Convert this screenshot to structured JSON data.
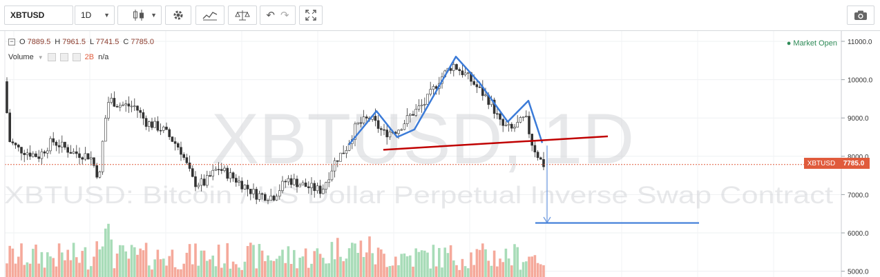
{
  "toolbar": {
    "symbol": "XBTUSD",
    "interval": "1D"
  },
  "legend": {
    "ohlc_open_label": "O",
    "ohlc_open": "7889.5",
    "ohlc_high_label": "H",
    "ohlc_high": "7961.5",
    "ohlc_low_label": "L",
    "ohlc_low": "7741.5",
    "ohlc_close_label": "C",
    "ohlc_close": "7785.0",
    "volume_label": "Volume",
    "volume_value": "2B",
    "volume_na": "n/a",
    "market_status": "Market Open"
  },
  "watermark": {
    "symbol": "XBTUSD, 1D",
    "description": "XBTUSD: Bitcoin / US Dollar Perpetual Inverse Swap Contract"
  },
  "price_tag": {
    "symbol": "XBTUSD",
    "price": "7785.0"
  },
  "colors": {
    "up": "#26a69a",
    "down": "#ef5350",
    "vol_up": "#a8dcb8",
    "vol_down": "#f5a99b",
    "pattern_line": "#3b7bd8",
    "neckline": "#c00000",
    "last_price": "#e05b3c"
  },
  "chart_data": {
    "type": "candlestick",
    "y_axis_ticks": [
      "11000.0",
      "10000.0",
      "9000.0",
      "8000.0",
      "7000.0",
      "6000.0",
      "5000.0"
    ],
    "y_axis_values": [
      11000,
      10000,
      9000,
      8000,
      7000,
      6000,
      5000
    ],
    "ylim": [
      4800,
      11200
    ],
    "last_price": 7785.0,
    "annotations": {
      "head_and_shoulders": [
        [
          505,
          8300
        ],
        [
          545,
          9180
        ],
        [
          575,
          8500
        ],
        [
          600,
          8700
        ],
        [
          660,
          10600
        ],
        [
          695,
          9900
        ],
        [
          735,
          8900
        ],
        [
          765,
          9450
        ],
        [
          785,
          8350
        ]
      ],
      "neckline": [
        [
          555,
          8170
        ],
        [
          880,
          8520
        ]
      ],
      "target_arrow": {
        "x": 792,
        "from": 8280,
        "to": 6270
      },
      "target_line": [
        [
          775,
          6260
        ],
        [
          1012,
          6260
        ]
      ]
    }
  }
}
